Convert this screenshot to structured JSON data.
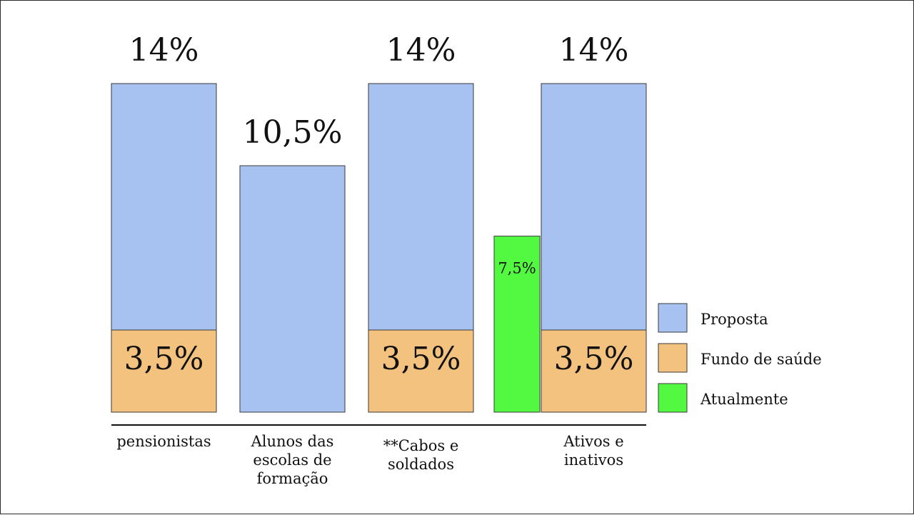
{
  "chart_data": {
    "type": "bar",
    "title": "",
    "xlabel": "",
    "ylabel": "",
    "ylim": [
      0,
      14
    ],
    "categories": [
      {
        "label_lines": [
          "pensionistas"
        ]
      },
      {
        "label_lines": [
          "Alunos das",
          "escolas de",
          "formação"
        ]
      },
      {
        "label_lines": [
          "**Cabos e",
          "soldados"
        ]
      },
      {
        "label_lines": [
          "Ativos e",
          "inativos"
        ]
      }
    ],
    "series": [
      {
        "name": "Proposta",
        "color": "#a7c2f1",
        "values": [
          10.5,
          10.5,
          10.5,
          10.5
        ]
      },
      {
        "name": "Fundo de saúde",
        "color": "#f3c27f",
        "values": [
          3.5,
          0,
          3.5,
          3.5
        ]
      },
      {
        "name": "Atualmente",
        "color": "#53f841",
        "values": [
          null,
          null,
          null,
          7.5
        ]
      }
    ],
    "total_labels": [
      "14%",
      "10,5%",
      "14%",
      "14%"
    ],
    "fundo_labels": [
      "3,5%",
      "",
      "3,5%",
      "3,5%"
    ],
    "atualmente_label": "7,5%",
    "legend": {
      "position": "right",
      "items": [
        "Proposta",
        "Fundo de saúde",
        "Atualmente"
      ]
    },
    "grid": false
  }
}
